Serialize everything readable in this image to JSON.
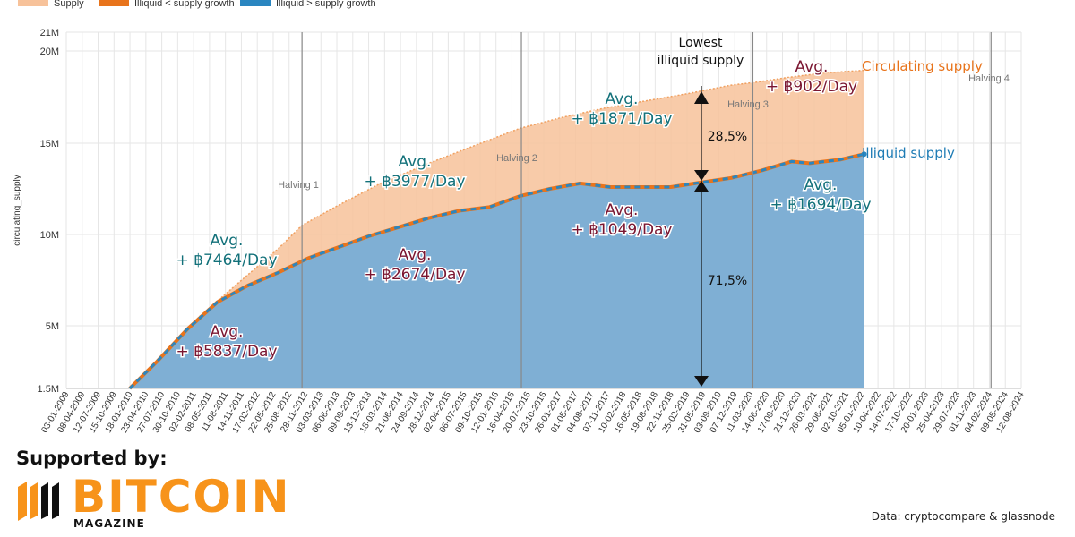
{
  "chart_data": {
    "type": "area",
    "ylabel": "circulating_supply",
    "y_ticks": [
      "1.5M",
      "5M",
      "10M",
      "15M",
      "20M",
      "21M"
    ],
    "x_ticks": [
      "03-01-2009",
      "08-04-2009",
      "12-07-2009",
      "15-10-2009",
      "18-01-2010",
      "23-04-2010",
      "27-07-2010",
      "30-10-2010",
      "02-02-2011",
      "08-05-2011",
      "11-08-2011",
      "14-11-2011",
      "17-02-2012",
      "22-05-2012",
      "25-08-2012",
      "28-11-2012",
      "03-03-2013",
      "06-06-2013",
      "09-09-2013",
      "13-12-2013",
      "18-03-2014",
      "21-06-2014",
      "24-09-2014",
      "28-12-2014",
      "02-04-2015",
      "06-07-2015",
      "09-10-2015",
      "12-01-2016",
      "16-04-2016",
      "20-07-2016",
      "23-10-2016",
      "26-01-2017",
      "01-05-2017",
      "04-08-2017",
      "07-11-2017",
      "10-02-2018",
      "16-05-2018",
      "19-08-2018",
      "22-11-2018",
      "25-02-2019",
      "31-05-2019",
      "03-09-2019",
      "07-12-2019",
      "11-03-2020",
      "14-06-2020",
      "17-09-2020",
      "21-12-2020",
      "26-03-2021",
      "29-06-2021",
      "02-10-2021",
      "05-01-2022",
      "10-04-2022",
      "14-07-2022",
      "17-10-2022",
      "20-01-2023",
      "25-04-2023",
      "29-07-2023",
      "01-11-2023",
      "04-02-2024",
      "09-05-2024",
      "12-08-2024"
    ],
    "legend": [
      {
        "name": "Supply",
        "color": "#f7c29a"
      },
      {
        "name": "Illiquid < supply growth",
        "color": "#e8741c"
      },
      {
        "name": "Illiquid > supply growth",
        "color": "#2a86c0"
      }
    ],
    "series": [
      {
        "name": "Supply",
        "color": "#f7c29a",
        "x": [
          2010.05,
          2010.6,
          2011.2,
          2011.9,
          2012.5,
          2012.9,
          2013.5,
          2014.2,
          2015.0,
          2015.7,
          2016.5,
          2017.2,
          2017.9,
          2018.6,
          2019.3,
          2020.0,
          2020.4,
          2020.9,
          2021.5,
          2022.2
        ],
        "y": [
          1.5,
          3.3,
          5.5,
          7.5,
          9.2,
          10.5,
          11.6,
          12.8,
          13.9,
          14.8,
          15.8,
          16.4,
          16.9,
          17.3,
          17.7,
          18.15,
          18.3,
          18.55,
          18.8,
          18.95
        ]
      },
      {
        "name": "Illiquid supply",
        "color": "#2a86c0",
        "x": [
          2010.05,
          2010.5,
          2011.0,
          2011.5,
          2012.0,
          2012.5,
          2013.0,
          2013.5,
          2014.0,
          2014.5,
          2015.0,
          2015.5,
          2016.0,
          2016.5,
          2017.0,
          2017.5,
          2018.0,
          2018.5,
          2019.0,
          2019.4,
          2020.0,
          2020.5,
          2021.0,
          2021.3,
          2021.8,
          2022.2
        ],
        "y": [
          1.5,
          3.0,
          4.8,
          6.3,
          7.2,
          7.9,
          8.7,
          9.3,
          9.9,
          10.4,
          10.9,
          11.3,
          11.5,
          12.1,
          12.5,
          12.8,
          12.6,
          12.6,
          12.6,
          12.8,
          13.1,
          13.5,
          14.0,
          13.9,
          14.1,
          14.4
        ]
      }
    ],
    "halvings": [
      {
        "label": "Halving 1",
        "year": 2012.9
      },
      {
        "label": "Halving 2",
        "year": 2016.53
      },
      {
        "label": "Halving 3",
        "year": 2020.36
      },
      {
        "label": "Halving 4",
        "year": 2024.3
      }
    ],
    "annotations": {
      "circulating_supply": "Circulating supply",
      "illiquid_supply": "Illiquid supply",
      "lowest_line1": "Lowest",
      "lowest_line2": "illiquid supply",
      "pct_top": "28,5%",
      "pct_bottom": "71,5%",
      "avg": "Avg.",
      "s1": "+ ฿7464/Day",
      "s2": "+ ฿3977/Day",
      "s3": "+ ฿1871/Day",
      "s4": "+ ฿902/Day",
      "i1": "+ ฿5837/Day",
      "i2": "+ ฿2674/Day",
      "i3": "+ ฿1049/Day",
      "i4": "+ ฿1694/Day"
    }
  },
  "footer": {
    "supported_by": "Supported by:",
    "logo_word": "BITCOIN",
    "logo_sub": "MAGAZINE",
    "source": "Data: cryptocompare & glassnode"
  }
}
